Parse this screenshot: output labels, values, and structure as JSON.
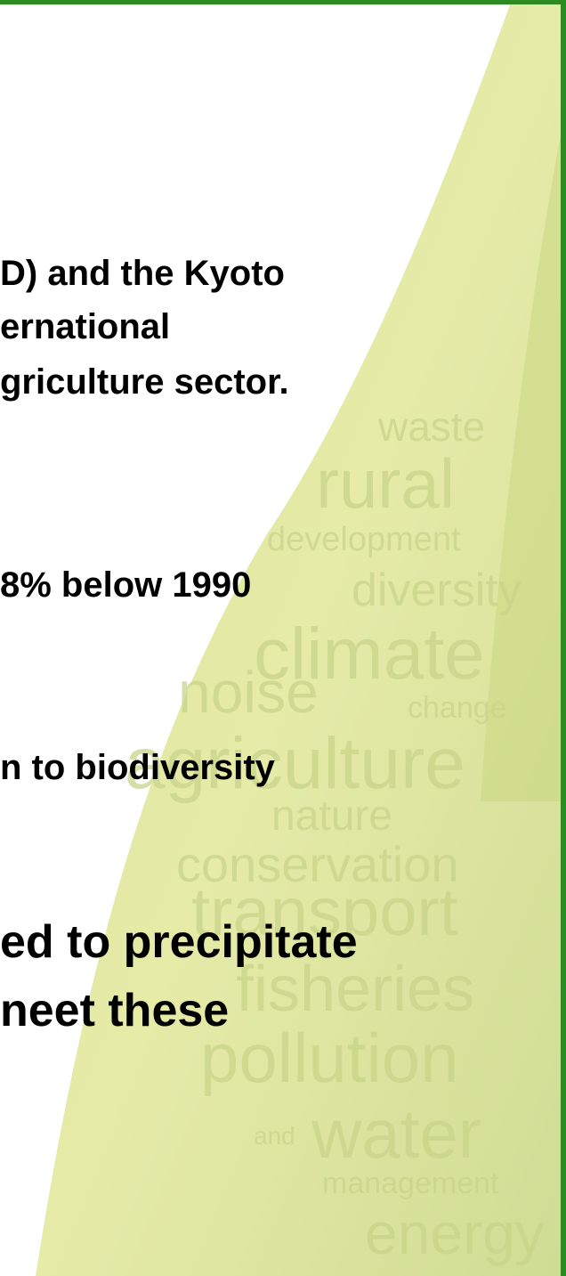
{
  "slide": {
    "lines": [
      "D) and the Kyoto",
      "ernational",
      "griculture sector.",
      "8% below 1990",
      "n to biodiversity",
      "ed to precipitate",
      "neet these"
    ],
    "background_words": [
      "waste",
      "rural",
      "development",
      "diversity",
      "climate",
      "noise",
      "change",
      "agriculture",
      "nature",
      "conservation",
      "transport",
      "fisheries",
      "pollution",
      "and",
      "water",
      "management",
      "energy"
    ]
  }
}
